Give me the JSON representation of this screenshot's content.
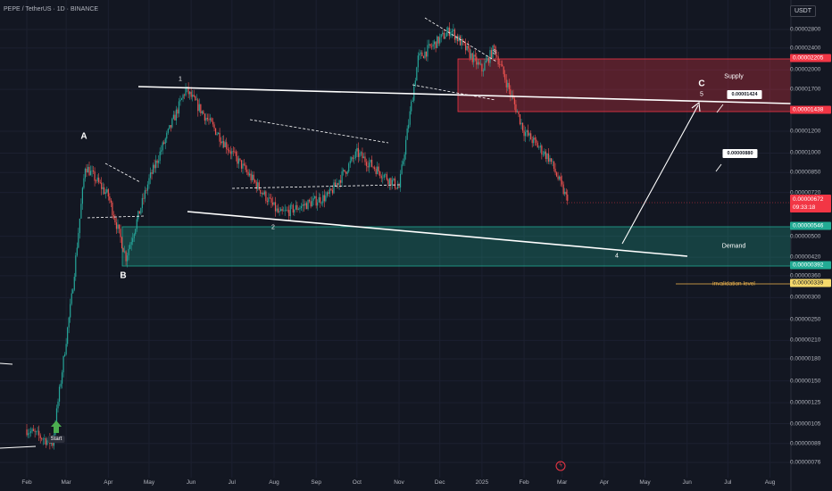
{
  "header": {
    "symbol_line": "PEPE / TetherUS · 1D · BINANCE"
  },
  "currency": "USDT",
  "price_axis": {
    "ticks": [
      "0.00002800",
      "0.00002400",
      "0.00002000",
      "0.00001700",
      "0.00001200",
      "0.00001000",
      "0.00000850",
      "0.00000720",
      "0.00000500",
      "0.00000420",
      "0.00000360",
      "0.00000300",
      "0.00000250",
      "0.00000210",
      "0.00000180",
      "0.00000150",
      "0.00000125",
      "0.00000105",
      "0.00000089",
      "0.00000076"
    ],
    "tags": [
      {
        "text": "0.00002205",
        "style": "red"
      },
      {
        "text": "0.00001438",
        "style": "red"
      },
      {
        "text": "0.00000546",
        "style": "green"
      },
      {
        "text": "0.00000392",
        "style": "green"
      },
      {
        "text": "0.00000339",
        "style": "yellow"
      }
    ],
    "last_price": "0.00000672",
    "countdown": "09:33:18"
  },
  "time_axis": [
    "Feb",
    "Mar",
    "Apr",
    "May",
    "Jun",
    "Jul",
    "Aug",
    "Sep",
    "Oct",
    "Nov",
    "Dec",
    "2025",
    "Feb",
    "Mar",
    "Apr",
    "May",
    "Jun",
    "Jul",
    "Aug"
  ],
  "annotations": {
    "wave_labels": [
      "A",
      "B",
      "1",
      "2",
      "3",
      "4",
      "5",
      "C"
    ],
    "supply_label": "Supply",
    "demand_label": "Demand",
    "target_1": "0.00001424",
    "target_2": "0.00000880",
    "invalidation_label": "invalidation level",
    "start_label": "Start"
  },
  "colors": {
    "background": "#131722",
    "up": "#26a69a",
    "down": "#ef5350",
    "supply": "#f23645",
    "demand": "#22ab94",
    "invalidation": "#f5b94e"
  },
  "chart_data": {
    "type": "candlestick",
    "title": "PEPE / TetherUS · 1D · BINANCE",
    "price_scale": "log",
    "y_unit": "USDT",
    "series": [
      {
        "name": "PEPE/USDT",
        "approx_closes": [
          {
            "x": "2024-02-01",
            "y": 1e-06
          },
          {
            "x": "2024-02-20",
            "y": 8.9e-07
          },
          {
            "x": "2024-03-05",
            "y": 3e-06
          },
          {
            "x": "2024-03-15",
            "y": 9e-06
          },
          {
            "x": "2024-04-01",
            "y": 7e-06
          },
          {
            "x": "2024-04-14",
            "y": 4.2e-06
          },
          {
            "x": "2024-05-01",
            "y": 8e-06
          },
          {
            "x": "2024-05-28",
            "y": 1.7e-05
          },
          {
            "x": "2024-07-01",
            "y": 1e-05
          },
          {
            "x": "2024-08-05",
            "y": 6e-06
          },
          {
            "x": "2024-09-10",
            "y": 7e-06
          },
          {
            "x": "2024-10-01",
            "y": 1e-05
          },
          {
            "x": "2024-11-01",
            "y": 7.5e-06
          },
          {
            "x": "2024-11-15",
            "y": 2.2e-05
          },
          {
            "x": "2024-12-09",
            "y": 2.8e-05
          },
          {
            "x": "2025-01-01",
            "y": 2e-05
          },
          {
            "x": "2025-01-10",
            "y": 2.4e-05
          },
          {
            "x": "2025-02-01",
            "y": 1.2e-05
          },
          {
            "x": "2025-02-20",
            "y": 9.5e-06
          },
          {
            "x": "2025-03-05",
            "y": 6.72e-06
          }
        ]
      }
    ],
    "zones": [
      {
        "name": "Supply",
        "from": 1.438e-05,
        "to": 2.205e-05
      },
      {
        "name": "Demand",
        "from": 3.92e-06,
        "to": 5.46e-06
      }
    ],
    "levels": [
      {
        "name": "invalidation level",
        "value": 3.39e-06
      }
    ],
    "targets": [
      1.424e-05,
      8.8e-06
    ],
    "last_price": 6.72e-06
  }
}
